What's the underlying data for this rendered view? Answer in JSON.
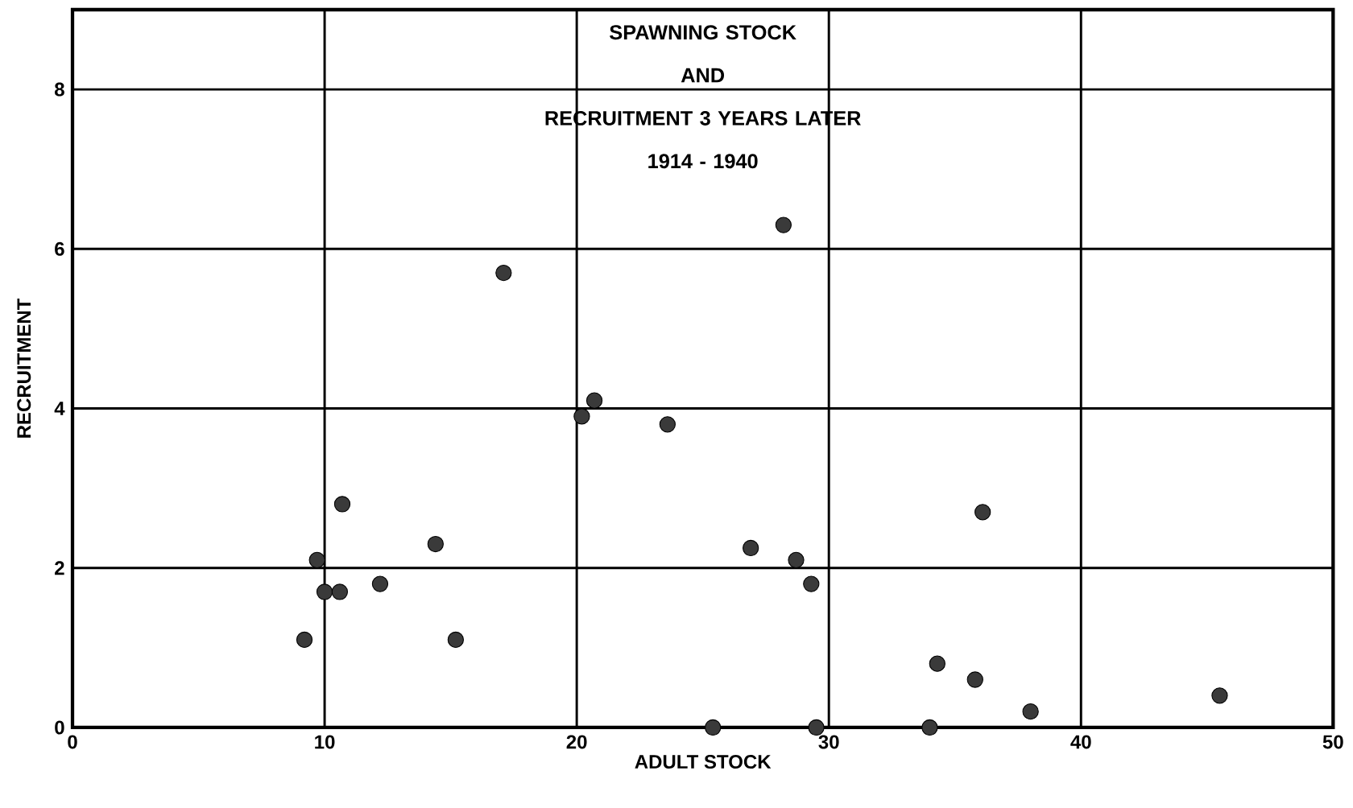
{
  "chart_data": {
    "type": "scatter",
    "title": "SPAWNING STOCK\nAND\nRECRUITMENT 3 YEARS LATER\n1914 - 1940",
    "xlabel": "ADULT    STOCK",
    "ylabel": "RECRUITMENT",
    "x": [
      9.2,
      9.7,
      10.0,
      10.6,
      10.7,
      12.2,
      14.4,
      15.2,
      17.1,
      20.2,
      20.7,
      23.6,
      25.4,
      26.9,
      28.2,
      28.7,
      29.3,
      29.5,
      34.0,
      34.3,
      35.8,
      36.1,
      38.0,
      45.5
    ],
    "values": [
      1.1,
      2.1,
      1.7,
      1.7,
      2.8,
      1.8,
      2.3,
      1.1,
      5.7,
      3.9,
      4.1,
      3.8,
      0,
      2.25,
      6.3,
      2.1,
      1.8,
      0,
      0,
      0.8,
      0.6,
      2.7,
      0.2,
      0.4
    ],
    "color": "#3a3a3a",
    "marker": "circle",
    "grid": true,
    "xlim": [
      0,
      50
    ],
    "xticks": [
      0,
      10,
      20,
      30,
      40,
      50
    ],
    "ylim": [
      0,
      9
    ],
    "yticks": [
      0,
      2,
      4,
      6,
      8
    ]
  }
}
